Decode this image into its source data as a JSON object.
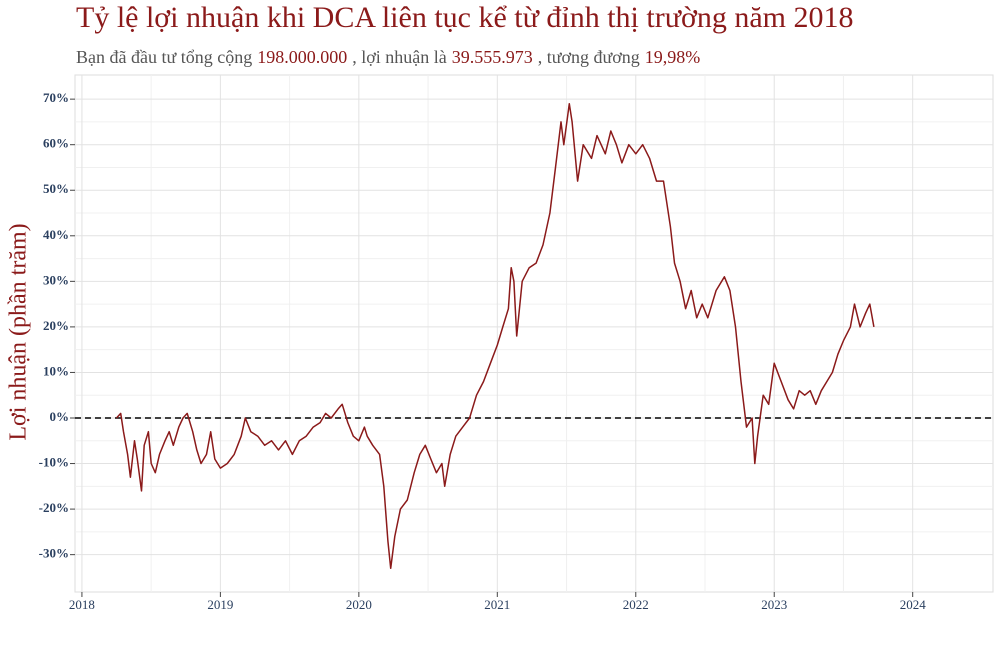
{
  "chart_data": {
    "type": "line",
    "title": "Tỷ lệ lợi nhuận khi DCA liên tục kể từ đỉnh thị trường năm 2018",
    "subtitle_parts": [
      {
        "text": "Bạn đã đầu tư tổng cộng",
        "highlight": false
      },
      {
        "text": "198.000.000",
        "highlight": true
      },
      {
        "text": ", lợi nhuận là",
        "highlight": false
      },
      {
        "text": "39.555.973",
        "highlight": true
      },
      {
        "text": ", tương đương",
        "highlight": false
      },
      {
        "text": "19,98%",
        "highlight": true
      }
    ],
    "y_label": "Lợi nhuận (phần trăm)",
    "accent_color": "#8b1a1a",
    "xlim": [
      2017.95,
      2024.58
    ],
    "xticks": [
      2018,
      2019,
      2020,
      2021,
      2022,
      2023,
      2024
    ],
    "ylim": [
      -38.2,
      75.3
    ],
    "yticks": [
      {
        "value": -30,
        "label": "-30%"
      },
      {
        "value": -20,
        "label": "-20%"
      },
      {
        "value": -10,
        "label": "-10%"
      },
      {
        "value": 0,
        "label": "0%"
      },
      {
        "value": 10,
        "label": "10%"
      },
      {
        "value": 20,
        "label": "20%"
      },
      {
        "value": 30,
        "label": "30%"
      },
      {
        "value": 40,
        "label": "40%"
      },
      {
        "value": 50,
        "label": "50%"
      },
      {
        "value": 60,
        "label": "60%"
      },
      {
        "value": 70,
        "label": "70%"
      }
    ],
    "grid": true,
    "reference_line": 0,
    "series": [
      {
        "color": "#8b1a1a",
        "x": [
          2018.25,
          2018.28,
          2018.3,
          2018.33,
          2018.35,
          2018.38,
          2018.4,
          2018.43,
          2018.45,
          2018.48,
          2018.5,
          2018.53,
          2018.56,
          2018.6,
          2018.63,
          2018.66,
          2018.7,
          2018.73,
          2018.76,
          2018.8,
          2018.83,
          2018.86,
          2018.9,
          2018.93,
          2018.96,
          2019.0,
          2019.05,
          2019.1,
          2019.15,
          2019.18,
          2019.22,
          2019.27,
          2019.32,
          2019.37,
          2019.42,
          2019.47,
          2019.52,
          2019.57,
          2019.62,
          2019.67,
          2019.72,
          2019.76,
          2019.8,
          2019.85,
          2019.88,
          2019.92,
          2019.96,
          2020.0,
          2020.04,
          2020.06,
          2020.1,
          2020.15,
          2020.18,
          2020.21,
          2020.23,
          2020.26,
          2020.3,
          2020.35,
          2020.4,
          2020.44,
          2020.48,
          2020.52,
          2020.56,
          2020.6,
          2020.62,
          2020.66,
          2020.7,
          2020.75,
          2020.8,
          2020.85,
          2020.9,
          2020.95,
          2021.0,
          2021.04,
          2021.08,
          2021.1,
          2021.12,
          2021.14,
          2021.18,
          2021.23,
          2021.28,
          2021.33,
          2021.38,
          2021.42,
          2021.46,
          2021.48,
          2021.52,
          2021.54,
          2021.58,
          2021.62,
          2021.68,
          2021.72,
          2021.78,
          2021.82,
          2021.86,
          2021.9,
          2021.95,
          2022.0,
          2022.05,
          2022.1,
          2022.15,
          2022.2,
          2022.25,
          2022.28,
          2022.32,
          2022.36,
          2022.4,
          2022.44,
          2022.48,
          2022.52,
          2022.58,
          2022.64,
          2022.68,
          2022.72,
          2022.76,
          2022.8,
          2022.84,
          2022.86,
          2022.88,
          2022.92,
          2022.96,
          2023.0,
          2023.05,
          2023.1,
          2023.14,
          2023.18,
          2023.22,
          2023.26,
          2023.3,
          2023.34,
          2023.38,
          2023.42,
          2023.46,
          2023.5,
          2023.55,
          2023.58,
          2023.62,
          2023.66,
          2023.69,
          2023.72
        ],
        "values": [
          0,
          1,
          -3,
          -8,
          -13,
          -5,
          -9,
          -16,
          -6,
          -3,
          -10,
          -12,
          -8,
          -5,
          -3,
          -6,
          -2,
          0,
          1,
          -3,
          -7,
          -10,
          -8,
          -3,
          -9,
          -11,
          -10,
          -8,
          -4,
          0,
          -3,
          -4,
          -6,
          -5,
          -7,
          -5,
          -8,
          -5,
          -4,
          -2,
          -1,
          1,
          0,
          2,
          3,
          -1,
          -4,
          -5,
          -2,
          -4,
          -6,
          -8,
          -15,
          -27,
          -33,
          -26,
          -20,
          -18,
          -12,
          -8,
          -6,
          -9,
          -12,
          -10,
          -15,
          -8,
          -4,
          -2,
          0,
          5,
          8,
          12,
          16,
          20,
          24,
          33,
          30,
          18,
          30,
          33,
          34,
          38,
          45,
          55,
          65,
          60,
          69,
          65,
          52,
          60,
          57,
          62,
          58,
          63,
          60,
          56,
          60,
          58,
          60,
          57,
          52,
          52,
          42,
          34,
          30,
          24,
          28,
          22,
          25,
          22,
          28,
          31,
          28,
          20,
          8,
          -2,
          0,
          -10,
          -4,
          5,
          3,
          12,
          8,
          4,
          2,
          6,
          5,
          6,
          3,
          6,
          8,
          10,
          14,
          17,
          20,
          25,
          20,
          23,
          25,
          20
        ]
      }
    ]
  }
}
